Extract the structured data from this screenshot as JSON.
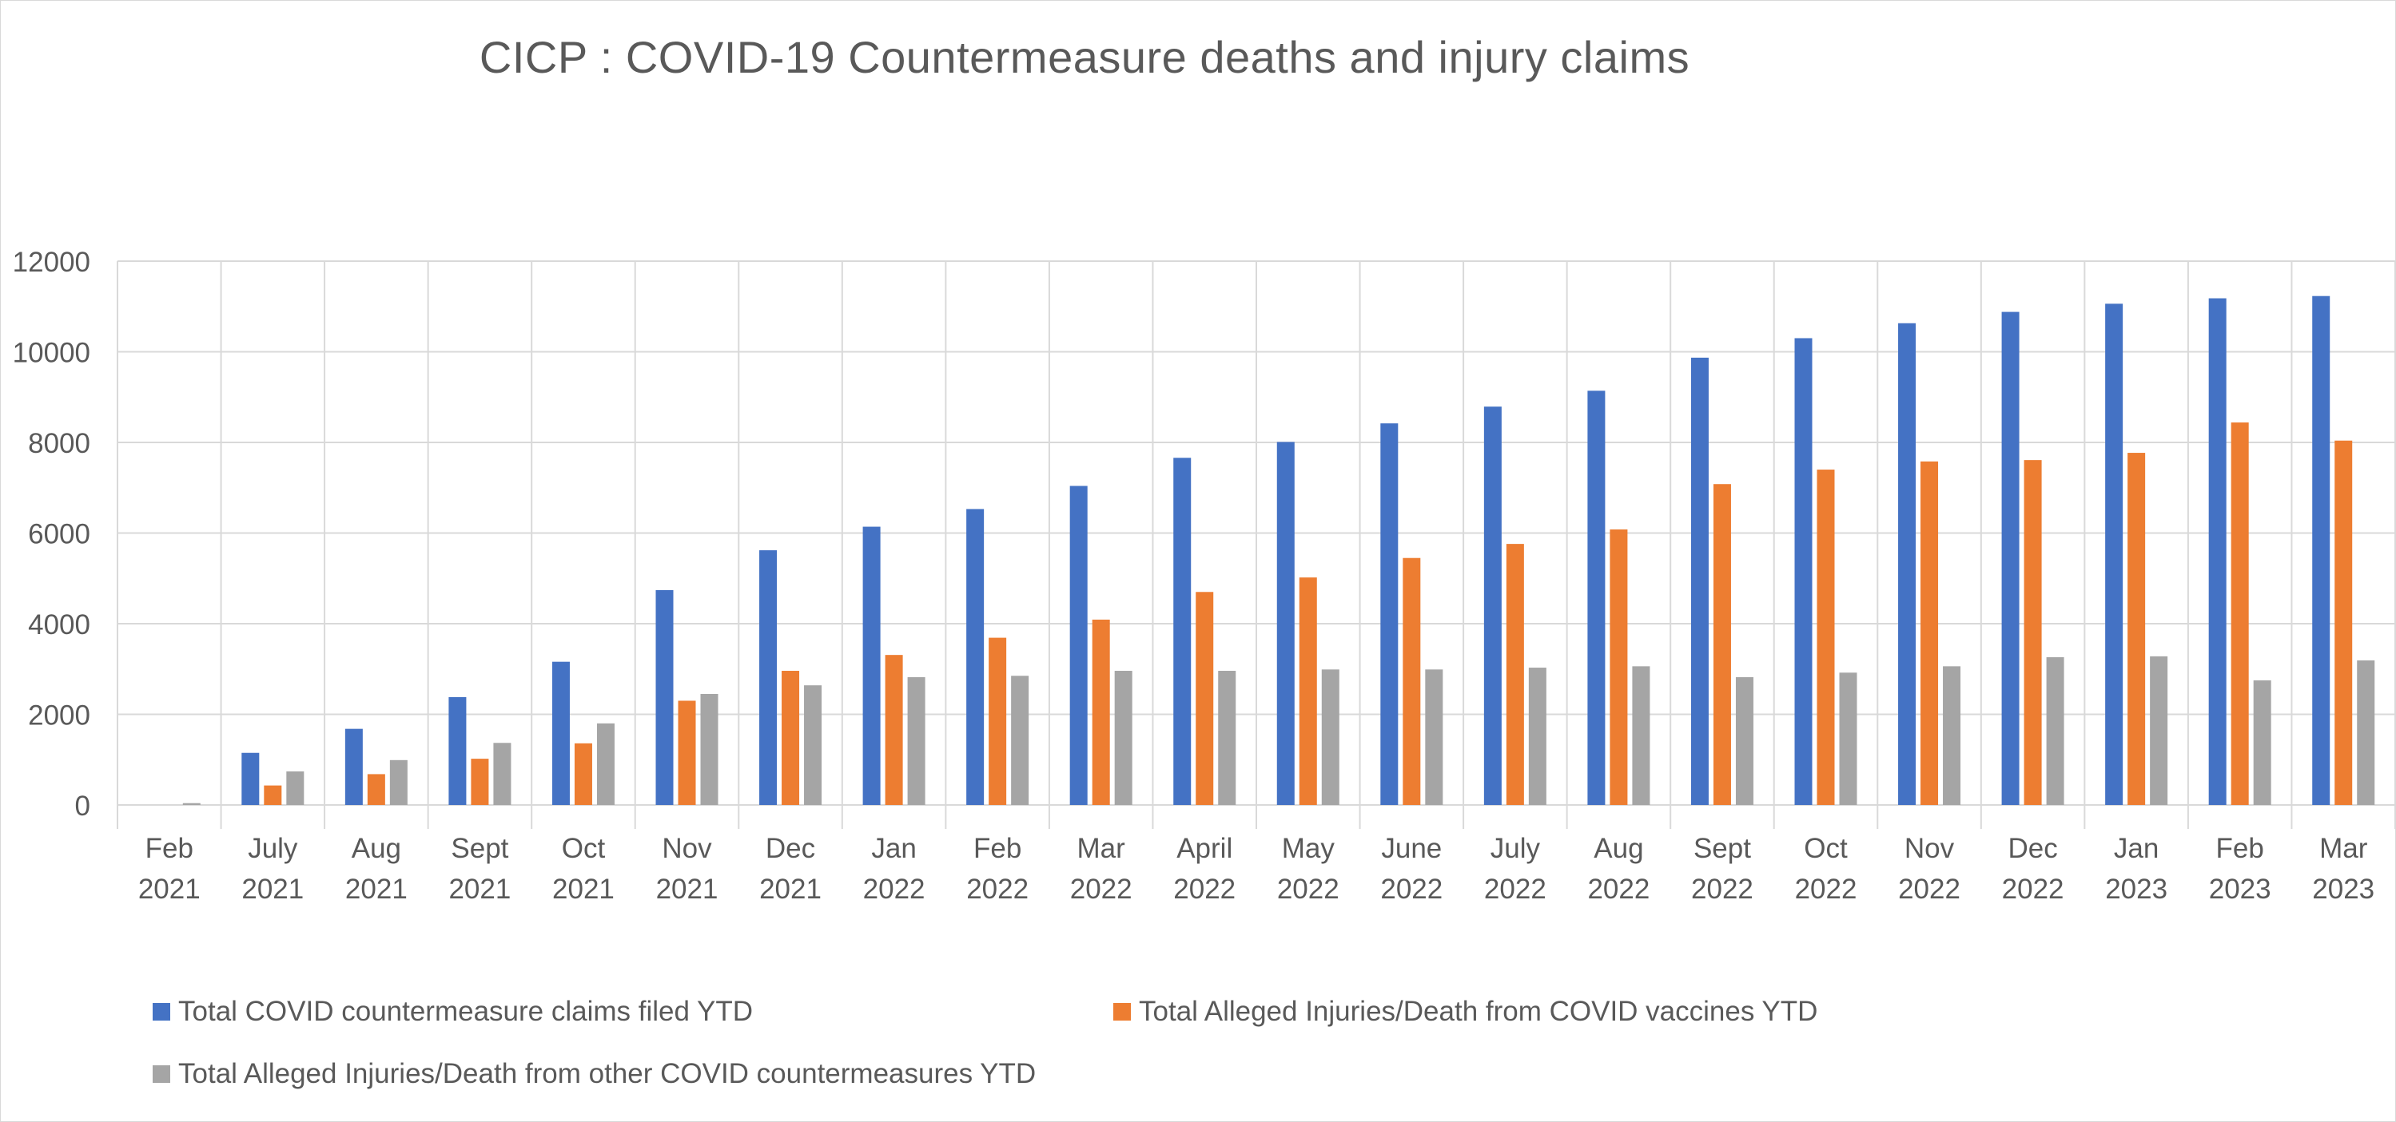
{
  "chart_data": {
    "type": "bar",
    "title": "CICP : COVID-19 Countermeasure deaths and injury claims",
    "xlabel": "",
    "ylabel": "",
    "ylim": [
      0,
      12000
    ],
    "yticks": [
      0,
      2000,
      4000,
      6000,
      8000,
      10000,
      12000
    ],
    "grid": true,
    "legend_position": "bottom",
    "categories": [
      [
        "Feb",
        "2021"
      ],
      [
        "July",
        "2021"
      ],
      [
        "Aug",
        "2021"
      ],
      [
        "Sept",
        "2021"
      ],
      [
        "Oct",
        "2021"
      ],
      [
        "Nov",
        "2021"
      ],
      [
        "Dec",
        "2021"
      ],
      [
        "Jan",
        "2022"
      ],
      [
        "Feb",
        "2022"
      ],
      [
        "Mar",
        "2022"
      ],
      [
        "April",
        "2022"
      ],
      [
        "May",
        "2022"
      ],
      [
        "June",
        "2022"
      ],
      [
        "July",
        "2022"
      ],
      [
        "Aug",
        "2022"
      ],
      [
        "Sept",
        "2022"
      ],
      [
        "Oct",
        "2022"
      ],
      [
        "Nov",
        "2022"
      ],
      [
        "Dec",
        "2022"
      ],
      [
        "Jan",
        "2023"
      ],
      [
        "Feb",
        "2023"
      ],
      [
        "Mar",
        "2023"
      ]
    ],
    "series": [
      {
        "name": "Total COVID countermeasure claims filed YTD",
        "color": "#4472c4",
        "values": [
          0,
          1150,
          1680,
          2380,
          3160,
          4740,
          5620,
          6140,
          6530,
          7040,
          7660,
          8010,
          8420,
          8790,
          9140,
          9870,
          10300,
          10630,
          10880,
          11060,
          11180,
          11230
        ]
      },
      {
        "name": "Total Alleged Injuries/Death from COVID vaccines YTD",
        "color": "#ed7d31",
        "values": [
          0,
          430,
          680,
          1020,
          1360,
          2300,
          2960,
          3310,
          3690,
          4090,
          4700,
          5020,
          5450,
          5760,
          6080,
          7080,
          7400,
          7580,
          7610,
          7770,
          8440,
          8040
        ]
      },
      {
        "name": "Total Alleged Injuries/Death from other COVID countermeasures YTD",
        "color": "#a5a5a5",
        "values": [
          40,
          740,
          990,
          1370,
          1800,
          2450,
          2640,
          2820,
          2850,
          2960,
          2960,
          2990,
          2990,
          3030,
          3060,
          2820,
          2920,
          3060,
          3260,
          3280,
          2750,
          3190
        ]
      }
    ]
  }
}
